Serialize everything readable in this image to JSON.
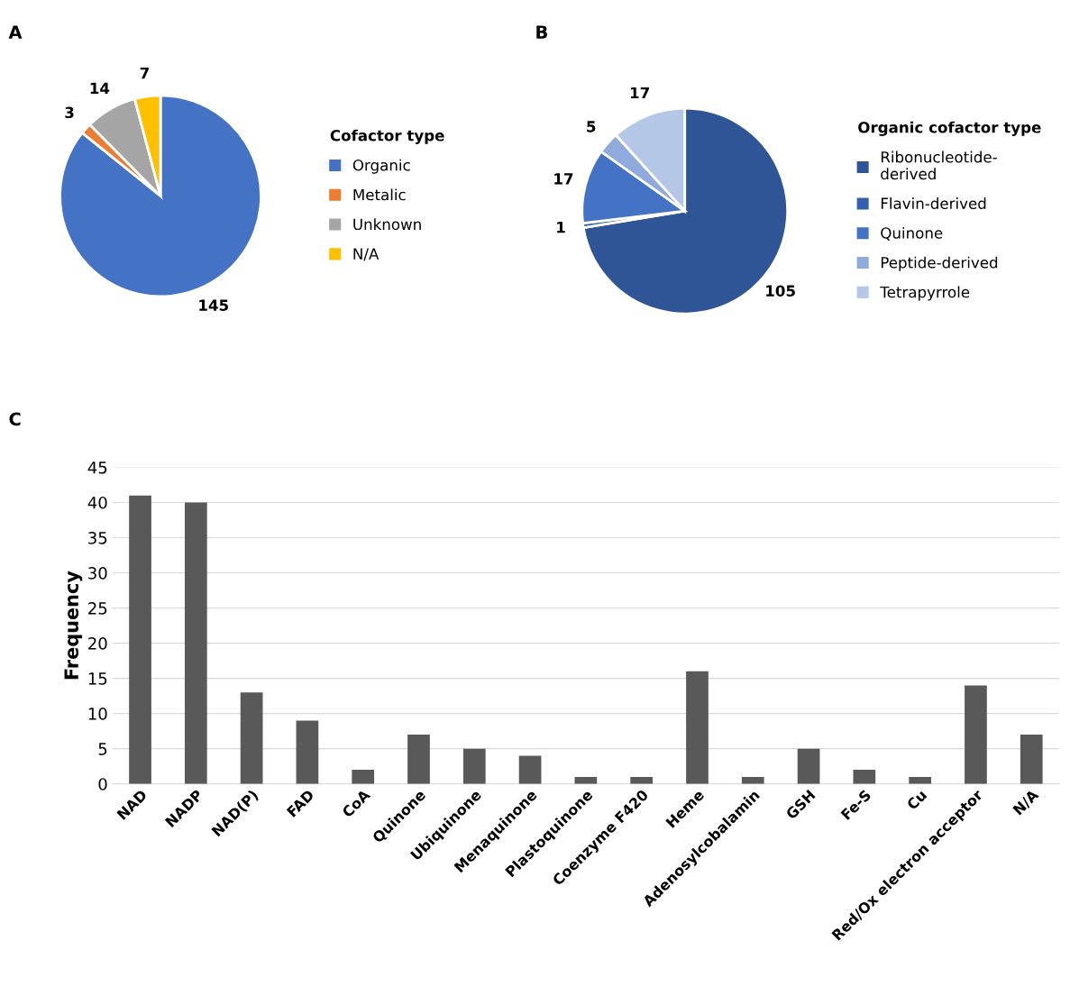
{
  "chart_data": [
    {
      "type": "pie",
      "title": "A",
      "legend_title": "Cofactor type",
      "categories": [
        "Organic",
        "Metalic",
        "Unknown",
        "N/A"
      ],
      "values": [
        145,
        3,
        14,
        7
      ],
      "colors": [
        "#4472c4",
        "#ed7d31",
        "#a5a5a5",
        "#ffc000"
      ],
      "data_labels": true,
      "legend": "right"
    },
    {
      "type": "pie",
      "title": "B",
      "legend_title": "Organic cofactor type",
      "categories": [
        "Ribonucleotide-\nderived",
        "Flavin-derived",
        "Quinone",
        "Peptide-derived",
        "Tetrapyrrole"
      ],
      "values": [
        105,
        1,
        17,
        5,
        17
      ],
      "colors": [
        "#2f5597",
        "#3560b0",
        "#4472c4",
        "#8faadc",
        "#b4c7e7"
      ],
      "data_labels": true,
      "legend": "right"
    },
    {
      "type": "bar",
      "title": "C",
      "ylabel": "Frequency",
      "categories": [
        "NAD",
        "NADP",
        "NAD(P)",
        "FAD",
        "CoA",
        "Quinone",
        "Ubiquinone",
        "Menaquinone",
        "Plastoquinone",
        "Coenzyme F420",
        "Heme",
        "Adenosylcobalamin",
        "GSH",
        "Fe-S",
        "Cu",
        "Red/Ox electron acceptor",
        "N/A"
      ],
      "series": [
        {
          "color": "#595959",
          "values": [
            41,
            40,
            13,
            9,
            2,
            7,
            5,
            4,
            1,
            1,
            16,
            1,
            5,
            2,
            1,
            14,
            7
          ]
        }
      ],
      "ylim": [
        0,
        45
      ],
      "yticks": [
        0,
        5,
        10,
        15,
        20,
        25,
        30,
        35,
        40,
        45
      ],
      "grid": "y"
    }
  ]
}
